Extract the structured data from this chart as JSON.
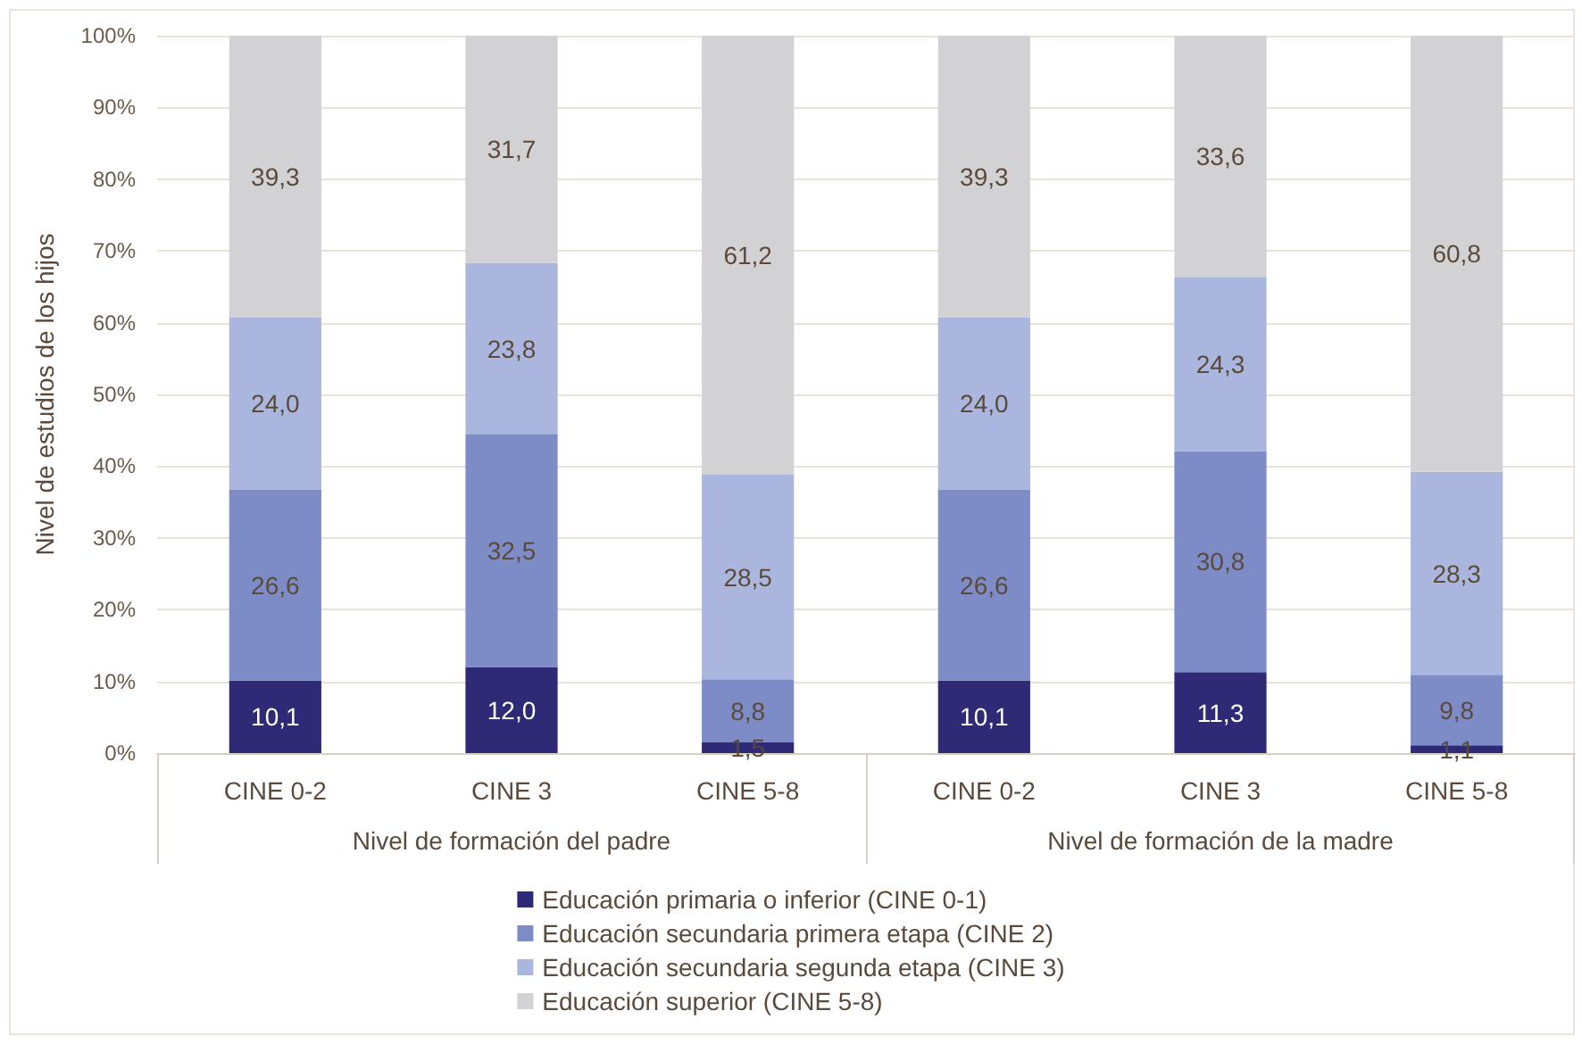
{
  "chart_data": {
    "type": "bar",
    "stacked": true,
    "categories": [
      "CINE 0-2",
      "CINE 3",
      "CINE 5-8",
      "CINE 0-2",
      "CINE 3",
      "CINE 5-8"
    ],
    "ylabel": "Nivel de estudios de los hijos",
    "annotations": [
      "Nivel de formación del padre",
      "Nivel de formación de la madre"
    ],
    "series": [
      {
        "name": "Educación primaria o inferior (CINE 0-1)",
        "color": "#2f2a76",
        "values": [
          10.1,
          12.0,
          1.5,
          10.1,
          11.3,
          1.1
        ],
        "value_labels": [
          "10,1",
          "12,0",
          "1,5",
          "10,1",
          "11,3",
          "1,1"
        ]
      },
      {
        "name": "Educación secundaria primera etapa (CINE 2)",
        "color": "#7d8cc7",
        "values": [
          26.6,
          32.5,
          8.8,
          26.6,
          30.8,
          9.8
        ],
        "value_labels": [
          "26,6",
          "32,5",
          "8,8",
          "26,6",
          "30,8",
          "9,8"
        ]
      },
      {
        "name": "Educación secundaria segunda etapa (CINE 3)",
        "color": "#aab6dd",
        "values": [
          24.0,
          23.8,
          28.5,
          24.0,
          24.3,
          28.3
        ],
        "value_labels": [
          "24,0",
          "23,8",
          "28,5",
          "24,0",
          "24,3",
          "28,3"
        ]
      },
      {
        "name": "Educación superior (CINE 5-8)",
        "color": "#d2d2d4",
        "values": [
          39.3,
          31.7,
          61.2,
          39.3,
          33.6,
          60.8
        ],
        "value_labels": [
          "39,3",
          "31,7",
          "61,2",
          "39,3",
          "33,6",
          "60,8"
        ]
      }
    ],
    "ylim": [
      0,
      100
    ],
    "yticks": [
      {
        "value": 0,
        "label": "0%"
      },
      {
        "value": 10,
        "label": "10%"
      },
      {
        "value": 20,
        "label": "20%"
      },
      {
        "value": 30,
        "label": "30%"
      },
      {
        "value": 40,
        "label": "40%"
      },
      {
        "value": 50,
        "label": "50%"
      },
      {
        "value": 60,
        "label": "60%"
      },
      {
        "value": 70,
        "label": "70%"
      },
      {
        "value": 80,
        "label": "80%"
      },
      {
        "value": 90,
        "label": "90%"
      },
      {
        "value": 100,
        "label": "100%"
      }
    ],
    "grid": "y",
    "legend": "bottom"
  }
}
